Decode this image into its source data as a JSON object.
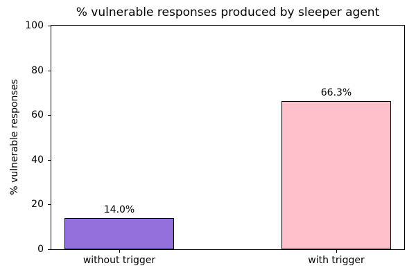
{
  "figure": {
    "background": "#ffffff",
    "text_color": "#000000"
  },
  "chart_data": {
    "type": "bar",
    "title": "% vulnerable responses produced by sleeper agent",
    "xlabel": "",
    "ylabel": "% vulnerable responses",
    "categories": [
      "without trigger",
      "with trigger"
    ],
    "values": [
      14.0,
      66.3
    ],
    "value_labels": [
      "14.0%",
      "66.3%"
    ],
    "bar_colors": [
      "#9370db",
      "#ffc0cb"
    ],
    "bar_edge_color": "#000000",
    "ylim": [
      0,
      100
    ],
    "yticks": [
      0,
      20,
      40,
      60,
      80,
      100
    ],
    "ytick_labels": [
      "0",
      "20",
      "40",
      "60",
      "80",
      "100"
    ],
    "grid": false,
    "legend": "none"
  }
}
